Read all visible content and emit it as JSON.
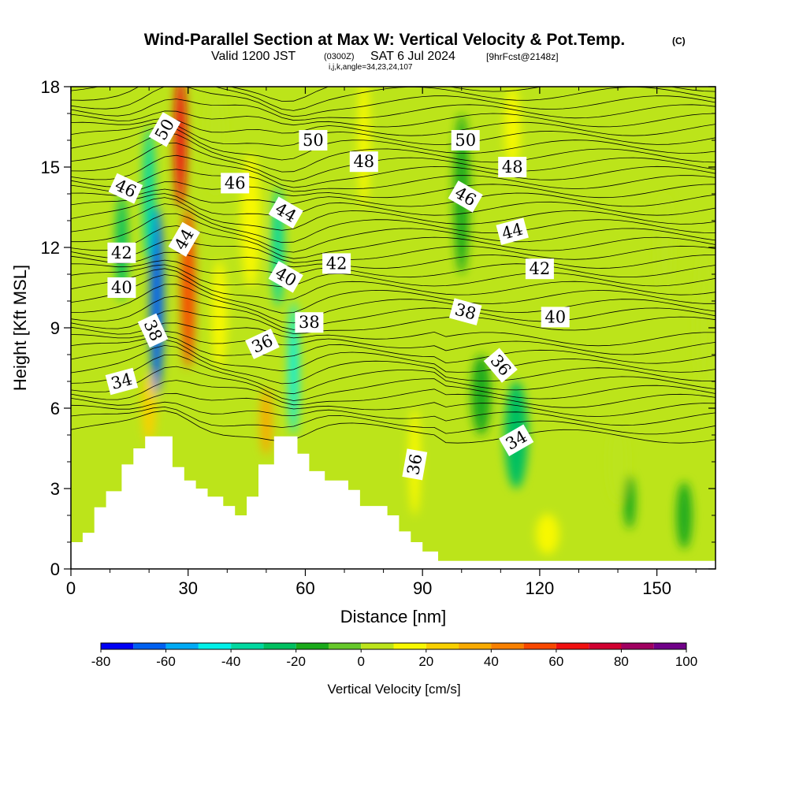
{
  "title": {
    "main": "Wind-Parallel Section at Max W: Vertical Velocity & Pot.Temp.",
    "copyright": "(C)",
    "valid_prefix": "Valid 1200 JST",
    "valid_utc": "(0300Z)",
    "valid_date": "SAT 6 Jul 2024",
    "forecast": "[9hrFcst@2148z]",
    "ijk": "i,j,k,angle=34,23,24,107"
  },
  "chart_data": {
    "type": "heatmap",
    "xlabel": "Distance [nm]",
    "ylabel": "Height [Kft MSL]",
    "xlim": [
      0,
      165
    ],
    "ylim": [
      0,
      18
    ],
    "x_ticks": [
      "0",
      "30",
      "60",
      "90",
      "120",
      "150"
    ],
    "y_ticks": [
      "0",
      "3",
      "6",
      "9",
      "12",
      "15",
      "18"
    ],
    "colorbar": {
      "label": "Vertical Velocity [cm/s]",
      "levels": [
        -80,
        -70,
        -60,
        -50,
        -40,
        -30,
        -20,
        -10,
        0,
        10,
        20,
        30,
        40,
        50,
        60,
        70,
        80,
        90,
        100
      ],
      "tick_labels": [
        "-80",
        "-60",
        "-40",
        "-20",
        "0",
        "20",
        "40",
        "60",
        "80",
        "100"
      ],
      "colors": [
        "#0000f5",
        "#0060f0",
        "#00aaf5",
        "#00f0e8",
        "#00d8a0",
        "#00c060",
        "#1aaa1a",
        "#66c82a",
        "#bce41a",
        "#f8f800",
        "#f8d000",
        "#f8aa00",
        "#f88000",
        "#f84800",
        "#f01010",
        "#d00030",
        "#a00060",
        "#700088"
      ]
    },
    "terrain_profile": [
      {
        "x": 0,
        "y": 1.0
      },
      {
        "x": 3,
        "y": 1.0
      },
      {
        "x": 3,
        "y": 1.35
      },
      {
        "x": 6,
        "y": 1.35
      },
      {
        "x": 6,
        "y": 2.3
      },
      {
        "x": 9,
        "y": 2.3
      },
      {
        "x": 9,
        "y": 2.9
      },
      {
        "x": 13,
        "y": 2.9
      },
      {
        "x": 13,
        "y": 3.9
      },
      {
        "x": 16,
        "y": 3.9
      },
      {
        "x": 16,
        "y": 4.5
      },
      {
        "x": 19,
        "y": 4.5
      },
      {
        "x": 19,
        "y": 4.95
      },
      {
        "x": 26,
        "y": 4.95
      },
      {
        "x": 26,
        "y": 3.8
      },
      {
        "x": 29,
        "y": 3.8
      },
      {
        "x": 29,
        "y": 3.3
      },
      {
        "x": 32,
        "y": 3.3
      },
      {
        "x": 32,
        "y": 3.0
      },
      {
        "x": 35,
        "y": 3.0
      },
      {
        "x": 35,
        "y": 2.7
      },
      {
        "x": 39,
        "y": 2.7
      },
      {
        "x": 39,
        "y": 2.35
      },
      {
        "x": 42,
        "y": 2.35
      },
      {
        "x": 42,
        "y": 2.0
      },
      {
        "x": 45,
        "y": 2.0
      },
      {
        "x": 45,
        "y": 2.7
      },
      {
        "x": 48,
        "y": 2.7
      },
      {
        "x": 48,
        "y": 3.9
      },
      {
        "x": 52,
        "y": 3.9
      },
      {
        "x": 52,
        "y": 4.95
      },
      {
        "x": 58,
        "y": 4.95
      },
      {
        "x": 58,
        "y": 4.3
      },
      {
        "x": 61,
        "y": 4.3
      },
      {
        "x": 61,
        "y": 3.65
      },
      {
        "x": 65,
        "y": 3.65
      },
      {
        "x": 65,
        "y": 3.3
      },
      {
        "x": 71,
        "y": 3.3
      },
      {
        "x": 71,
        "y": 2.95
      },
      {
        "x": 74,
        "y": 2.95
      },
      {
        "x": 74,
        "y": 2.35
      },
      {
        "x": 81,
        "y": 2.35
      },
      {
        "x": 81,
        "y": 2.0
      },
      {
        "x": 84,
        "y": 2.0
      },
      {
        "x": 84,
        "y": 1.4
      },
      {
        "x": 87,
        "y": 1.4
      },
      {
        "x": 87,
        "y": 1.0
      },
      {
        "x": 90,
        "y": 1.0
      },
      {
        "x": 90,
        "y": 0.65
      },
      {
        "x": 94,
        "y": 0.65
      },
      {
        "x": 94,
        "y": 0.3
      },
      {
        "x": 165,
        "y": 0.3
      }
    ],
    "vertical_velocity_features": [
      {
        "x": 13,
        "y": 12.0,
        "w": 3,
        "h": 4.0,
        "value": -25
      },
      {
        "x": 22,
        "y": 10.0,
        "w": 3.5,
        "h": 7.0,
        "value": -70
      },
      {
        "x": 20,
        "y": 14.0,
        "w": 3,
        "h": 5.0,
        "value": -40
      },
      {
        "x": 28,
        "y": 16.0,
        "w": 3,
        "h": 5.0,
        "value": 65
      },
      {
        "x": 30,
        "y": 10.5,
        "w": 3.5,
        "h": 6.0,
        "value": 50
      },
      {
        "x": 20,
        "y": 6.0,
        "w": 3.5,
        "h": 2.5,
        "value": 20
      },
      {
        "x": 50,
        "y": 5.5,
        "w": 3,
        "h": 2.5,
        "value": 30
      },
      {
        "x": 57,
        "y": 7.5,
        "w": 2.5,
        "h": 5.0,
        "value": -45
      },
      {
        "x": 53,
        "y": 12.0,
        "w": 3,
        "h": 4.5,
        "value": -40
      },
      {
        "x": 46,
        "y": 13.0,
        "w": 5,
        "h": 5.0,
        "value": 15
      },
      {
        "x": 38,
        "y": 9.5,
        "w": 4,
        "h": 4.0,
        "value": 12
      },
      {
        "x": 37,
        "y": 16.0,
        "w": 5,
        "h": 4.0,
        "value": 8
      },
      {
        "x": 75,
        "y": 16.0,
        "w": 3,
        "h": 5.0,
        "value": 12
      },
      {
        "x": 88,
        "y": 4.0,
        "w": 3,
        "h": 4.0,
        "value": 18
      },
      {
        "x": 100,
        "y": 14.0,
        "w": 4,
        "h": 6.0,
        "value": -20
      },
      {
        "x": 114,
        "y": 5.0,
        "w": 6,
        "h": 4.0,
        "value": -25
      },
      {
        "x": 105,
        "y": 6.5,
        "w": 5,
        "h": 3.0,
        "value": -15
      },
      {
        "x": 113,
        "y": 16.5,
        "w": 4,
        "h": 3.0,
        "value": 15
      },
      {
        "x": 143,
        "y": 2.5,
        "w": 3,
        "h": 2.0,
        "value": -20
      },
      {
        "x": 157,
        "y": 2.0,
        "w": 4,
        "h": 2.5,
        "value": -20
      },
      {
        "x": 162,
        "y": 9.0,
        "w": 4,
        "h": 6.0,
        "value": 5
      },
      {
        "x": 122,
        "y": 1.3,
        "w": 6,
        "h": 1.5,
        "value": 10
      },
      {
        "x": 140,
        "y": 4.0,
        "w": 5,
        "h": 3.0,
        "value": 8
      },
      {
        "x": 152,
        "y": 12.0,
        "w": 4,
        "h": 4.0,
        "value": 5
      }
    ],
    "theta_contour_labels": [
      {
        "text": "50",
        "x": 24,
        "y": 16.4,
        "angle": -60
      },
      {
        "text": "50",
        "x": 62,
        "y": 16.0,
        "angle": 0
      },
      {
        "text": "50",
        "x": 101,
        "y": 16.0,
        "angle": 0
      },
      {
        "text": "48",
        "x": 75,
        "y": 15.2,
        "angle": 0
      },
      {
        "text": "48",
        "x": 113,
        "y": 15.0,
        "angle": 0
      },
      {
        "text": "46",
        "x": 14,
        "y": 14.2,
        "angle": 25
      },
      {
        "text": "46",
        "x": 42,
        "y": 14.4,
        "angle": 0
      },
      {
        "text": "46",
        "x": 101,
        "y": 13.9,
        "angle": 30
      },
      {
        "text": "44",
        "x": 55,
        "y": 13.3,
        "angle": 30
      },
      {
        "text": "44",
        "x": 29,
        "y": 12.3,
        "angle": -60
      },
      {
        "text": "44",
        "x": 113,
        "y": 12.6,
        "angle": -15
      },
      {
        "text": "42",
        "x": 13,
        "y": 11.8,
        "angle": 0
      },
      {
        "text": "42",
        "x": 68,
        "y": 11.4,
        "angle": 0
      },
      {
        "text": "42",
        "x": 120,
        "y": 11.2,
        "angle": 0
      },
      {
        "text": "40",
        "x": 13,
        "y": 10.5,
        "angle": 0
      },
      {
        "text": "40",
        "x": 55,
        "y": 10.9,
        "angle": 30
      },
      {
        "text": "40",
        "x": 124,
        "y": 9.4,
        "angle": 0
      },
      {
        "text": "38",
        "x": 21,
        "y": 8.9,
        "angle": 65
      },
      {
        "text": "38",
        "x": 61,
        "y": 9.2,
        "angle": 0
      },
      {
        "text": "38",
        "x": 101,
        "y": 9.6,
        "angle": 15
      },
      {
        "text": "36",
        "x": 49,
        "y": 8.4,
        "angle": -25
      },
      {
        "text": "36",
        "x": 110,
        "y": 7.6,
        "angle": 50
      },
      {
        "text": "36",
        "x": 88,
        "y": 3.9,
        "angle": -80
      },
      {
        "text": "34",
        "x": 13,
        "y": 7.0,
        "angle": -15
      },
      {
        "text": "34",
        "x": 114,
        "y": 4.8,
        "angle": -30
      }
    ]
  }
}
